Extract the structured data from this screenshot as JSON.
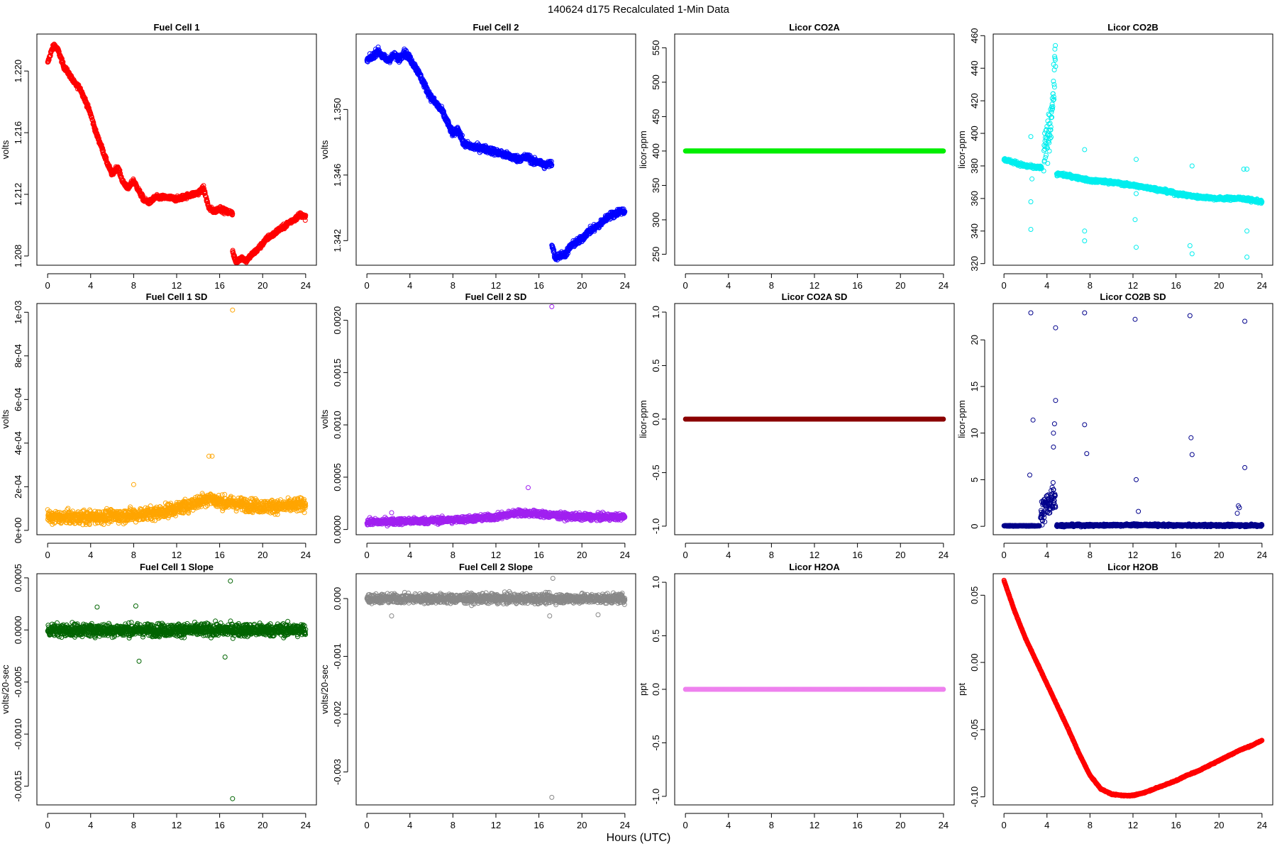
{
  "figure": {
    "title": "140624    d175    Recalculated 1-Min Data",
    "xlabel": "Hours (UTC)"
  },
  "chart_data": [
    {
      "type": "scatter",
      "title": "Fuel Cell 1",
      "ylabel": "volts",
      "color": "#ff0000",
      "x_ticks": [
        0,
        4,
        8,
        12,
        16,
        20,
        24
      ],
      "xlim": [
        -1,
        25
      ],
      "ylim": [
        1.2074,
        1.2224
      ],
      "y_ticks": [
        1.208,
        1.212,
        1.216,
        1.22
      ],
      "y_tick_labels": [
        "1.208",
        "1.212",
        "1.216",
        "1.220"
      ],
      "series": [
        {
          "x": [
            0,
            0.3,
            0.6,
            1,
            1.5,
            2,
            2.5,
            3,
            3.5,
            4,
            4.5,
            5,
            5.5,
            6,
            6.5,
            7,
            7.5,
            8,
            8.5,
            9,
            9.5,
            10,
            11,
            12,
            13,
            14,
            14.5,
            15,
            15.5,
            16,
            16.5,
            17.2
          ],
          "y": [
            1.2205,
            1.2212,
            1.2217,
            1.2213,
            1.2203,
            1.2198,
            1.2192,
            1.2189,
            1.2181,
            1.2172,
            1.216,
            1.2151,
            1.2141,
            1.2133,
            1.2138,
            1.2128,
            1.2124,
            1.2129,
            1.2122,
            1.2116,
            1.2115,
            1.2118,
            1.2118,
            1.2117,
            1.2119,
            1.2121,
            1.2124,
            1.2111,
            1.2109,
            1.2111,
            1.2109,
            1.2108
          ],
          "noise": 0.00015
        },
        {
          "x": [
            17.2,
            17.5,
            18,
            18.5,
            19,
            19.5,
            20,
            20.5,
            21,
            21.5,
            22,
            22.5,
            23,
            23.5,
            24
          ],
          "y": [
            1.2083,
            1.2076,
            1.2079,
            1.2077,
            1.2081,
            1.2084,
            1.2088,
            1.2092,
            1.2094,
            1.2097,
            1.2099,
            1.2102,
            1.2104,
            1.2107,
            1.2105
          ],
          "noise": 0.00015
        }
      ]
    },
    {
      "type": "scatter",
      "title": "Fuel Cell 2",
      "ylabel": "volts",
      "color": "#0000ff",
      "x_ticks": [
        0,
        4,
        8,
        12,
        16,
        20,
        24
      ],
      "xlim": [
        -1,
        25
      ],
      "ylim": [
        1.3405,
        1.3546
      ],
      "y_ticks": [
        1.342,
        1.346,
        1.35
      ],
      "y_tick_labels": [
        "1.342",
        "1.346",
        "1.350"
      ],
      "series": [
        {
          "x": [
            0,
            0.5,
            1,
            1.5,
            2,
            2.5,
            3,
            3.5,
            4,
            4.5,
            5,
            5.5,
            6,
            6.5,
            7,
            7.5,
            8,
            8.5,
            9,
            10,
            11,
            12,
            13,
            14,
            15,
            15.5,
            16,
            16.5,
            17.2
          ],
          "y": [
            1.353,
            1.3532,
            1.3536,
            1.3532,
            1.353,
            1.3533,
            1.3531,
            1.3535,
            1.3531,
            1.3526,
            1.352,
            1.3513,
            1.3507,
            1.3503,
            1.3499,
            1.3492,
            1.3485,
            1.3488,
            1.3479,
            1.3477,
            1.3476,
            1.3474,
            1.3472,
            1.347,
            1.3471,
            1.3468,
            1.3468,
            1.3466,
            1.3467
          ],
          "noise": 0.0002
        },
        {
          "x": [
            17.2,
            17.5,
            18,
            18.5,
            19,
            19.5,
            20,
            20.5,
            21,
            21.5,
            22,
            22.5,
            23,
            23.5,
            24
          ],
          "y": [
            1.3418,
            1.341,
            1.3411,
            1.3412,
            1.3417,
            1.3419,
            1.3421,
            1.3425,
            1.3427,
            1.3429,
            1.3432,
            1.3435,
            1.3436,
            1.3438,
            1.3438
          ],
          "noise": 0.0002
        }
      ]
    },
    {
      "type": "scatter",
      "title": "Licor CO2A",
      "ylabel": "licor-ppm",
      "color": "#00ee00",
      "x_ticks": [
        0,
        4,
        8,
        12,
        16,
        20,
        24
      ],
      "xlim": [
        -1,
        25
      ],
      "ylim": [
        234,
        570
      ],
      "y_ticks": [
        250,
        300,
        350,
        400,
        450,
        500,
        550
      ],
      "y_tick_labels": [
        "250",
        "300",
        "350",
        "400",
        "450",
        "500",
        "550"
      ],
      "series": [
        {
          "x": [
            0,
            24
          ],
          "y": [
            400,
            400
          ],
          "noise": 0
        }
      ]
    },
    {
      "type": "scatter",
      "title": "Licor CO2B",
      "ylabel": "licor-ppm",
      "color": "#00eeee",
      "x_ticks": [
        0,
        4,
        8,
        12,
        16,
        20,
        24
      ],
      "xlim": [
        -1,
        25
      ],
      "ylim": [
        319,
        461
      ],
      "y_ticks": [
        320,
        340,
        360,
        380,
        400,
        420,
        440,
        460
      ],
      "y_tick_labels": [
        "320",
        "340",
        "360",
        "380",
        "400",
        "420",
        "440",
        "460"
      ],
      "series": [
        {
          "x": [
            0,
            1,
            2,
            3,
            3.5
          ],
          "y": [
            384,
            382,
            380,
            379,
            379
          ],
          "noise": 1
        },
        {
          "x": [
            3.7,
            4,
            4.3,
            4.6,
            4.8
          ],
          "y": [
            385,
            395,
            405,
            425,
            450
          ],
          "noise": 12
        },
        {
          "x": [
            4.9,
            6,
            8,
            10,
            12,
            14,
            16,
            18,
            20,
            22,
            24
          ],
          "y": [
            375,
            374,
            371,
            370,
            368,
            366,
            363,
            361,
            360,
            360,
            358
          ],
          "noise": 1
        }
      ],
      "points": {
        "x": [
          2.5,
          2.5,
          2.6,
          2.5,
          7.5,
          7.5,
          7.5,
          12.3,
          12.3,
          12.2,
          12.3,
          17.3,
          17.5,
          17.5,
          22.3,
          22.6,
          22.6,
          22.6
        ],
        "y": [
          398,
          341,
          372,
          358,
          390,
          340,
          334,
          384,
          363,
          347,
          330,
          331,
          380,
          326,
          378,
          378,
          340,
          324
        ]
      }
    },
    {
      "type": "scatter",
      "title": "Fuel Cell 1 SD",
      "ylabel": "volts",
      "color": "#ffa500",
      "x_ticks": [
        0,
        4,
        8,
        12,
        16,
        20,
        24
      ],
      "xlim": [
        -1,
        25
      ],
      "ylim": [
        -2e-05,
        0.00104
      ],
      "y_ticks": [
        0,
        0.0002,
        0.0004,
        0.0006,
        0.0008,
        0.001
      ],
      "y_tick_labels": [
        "0e+00",
        "2e-04",
        "4e-04",
        "6e-04",
        "8e-04",
        "1e-03"
      ],
      "series": [
        {
          "x": [
            0,
            4,
            8,
            10,
            12,
            14,
            15,
            16,
            18,
            20,
            22,
            24
          ],
          "y": [
            6e-05,
            6e-05,
            7e-05,
            8e-05,
            0.0001,
            0.00013,
            0.00015,
            0.00013,
            0.00012,
            0.00011,
            0.00011,
            0.00012
          ],
          "noise": 3e-05
        }
      ],
      "points": {
        "x": [
          17.2,
          15.0,
          15.3,
          8.0
        ],
        "y": [
          0.00101,
          0.00034,
          0.00034,
          0.00021
        ]
      }
    },
    {
      "type": "scatter",
      "title": "Fuel Cell 2 SD",
      "ylabel": "volts",
      "color": "#a020f0",
      "x_ticks": [
        0,
        4,
        8,
        12,
        16,
        20,
        24
      ],
      "xlim": [
        -1,
        25
      ],
      "ylim": [
        -5e-05,
        0.00216
      ],
      "y_ticks": [
        0,
        0.0005,
        0.001,
        0.0015,
        0.002
      ],
      "y_tick_labels": [
        "0.0000",
        "0.0005",
        "0.0010",
        "0.0015",
        "0.0020"
      ],
      "series": [
        {
          "x": [
            0,
            4,
            8,
            12,
            14,
            16,
            18,
            20,
            24
          ],
          "y": [
            7e-05,
            8e-05,
            9e-05,
            0.00012,
            0.00016,
            0.00015,
            0.00013,
            0.00012,
            0.00012
          ],
          "noise": 3e-05
        }
      ],
      "points": {
        "x": [
          17.2,
          15.0,
          2.3
        ],
        "y": [
          0.00213,
          0.0004,
          0.00016
        ]
      }
    },
    {
      "type": "scatter",
      "title": "Licor CO2A SD",
      "ylabel": "licor-ppm",
      "color": "#8b0000",
      "x_ticks": [
        0,
        4,
        8,
        12,
        16,
        20,
        24
      ],
      "xlim": [
        -1,
        25
      ],
      "ylim": [
        -1.08,
        1.08
      ],
      "y_ticks": [
        -1,
        -0.5,
        0,
        0.5,
        1
      ],
      "y_tick_labels": [
        "-1.0",
        "-0.5",
        "0.0",
        "0.5",
        "1.0"
      ],
      "series": [
        {
          "x": [
            0,
            24
          ],
          "y": [
            0,
            0
          ],
          "noise": 0
        }
      ]
    },
    {
      "type": "scatter",
      "title": "Licor CO2B SD",
      "ylabel": "licor-ppm",
      "color": "#00008b",
      "x_ticks": [
        0,
        4,
        8,
        12,
        16,
        20,
        24
      ],
      "xlim": [
        -1,
        25
      ],
      "ylim": [
        -0.9,
        23.9
      ],
      "y_ticks": [
        0,
        5,
        10,
        15,
        20
      ],
      "y_tick_labels": [
        "0",
        "5",
        "10",
        "15",
        "20"
      ],
      "series": [
        {
          "x": [
            0,
            2,
            3.3
          ],
          "y": [
            0.05,
            0.05,
            0.05
          ],
          "noise": 0.04
        },
        {
          "x": [
            3.4,
            3.8,
            4.2,
            4.6,
            4.8
          ],
          "y": [
            1,
            2,
            2.5,
            3.5,
            3
          ],
          "noise": 1.6
        },
        {
          "x": [
            4.9,
            8,
            12,
            16,
            20,
            24
          ],
          "y": [
            0.1,
            0.1,
            0.15,
            0.1,
            0.1,
            0.1
          ],
          "noise": 0.12
        }
      ],
      "points": {
        "x": [
          2.5,
          2.4,
          2.7,
          4.8,
          4.8,
          4.7,
          4.6,
          4.6,
          7.5,
          7.5,
          7.7,
          12.2,
          12.3,
          17.3,
          17.4,
          17.5,
          22.4,
          22.4,
          21.8,
          21.9,
          21.7,
          12.5
        ],
        "y": [
          22.9,
          5.5,
          11.4,
          21.3,
          13.5,
          11,
          10,
          8.5,
          22.9,
          10.9,
          7.8,
          22.2,
          5,
          22.6,
          9.5,
          7.7,
          22,
          6.3,
          2.2,
          2,
          1.4,
          1.6
        ]
      }
    },
    {
      "type": "scatter",
      "title": "Fuel Cell 1 Slope",
      "ylabel": "volts/20-sec",
      "color": "#006400",
      "x_ticks": [
        0,
        4,
        8,
        12,
        16,
        20,
        24
      ],
      "xlim": [
        -1,
        25
      ],
      "ylim": [
        -0.00168,
        0.00054
      ],
      "y_ticks": [
        -0.0015,
        -0.001,
        -0.0005,
        0,
        0.0005
      ],
      "y_tick_labels": [
        "-0.0015",
        "-0.0010",
        "-0.0005",
        "0.0000",
        "0.0005"
      ],
      "series": [
        {
          "x": [
            0,
            24
          ],
          "y": [
            0,
            0
          ],
          "noise": 6e-05
        }
      ],
      "points": {
        "x": [
          17.2,
          17.0,
          8.5,
          4.6,
          8.2,
          16.5
        ],
        "y": [
          -0.00162,
          0.00047,
          -0.0003,
          0.00022,
          0.00023,
          -0.00026
        ]
      }
    },
    {
      "type": "scatter",
      "title": "Fuel Cell 2 Slope",
      "ylabel": "volts/20-sec",
      "color": "#888888",
      "x_ticks": [
        0,
        4,
        8,
        12,
        16,
        20,
        24
      ],
      "xlim": [
        -1,
        25
      ],
      "ylim": [
        -0.00357,
        0.00043
      ],
      "y_ticks": [
        -0.003,
        -0.002,
        -0.001,
        0
      ],
      "y_tick_labels": [
        "-0.003",
        "-0.002",
        "-0.001",
        "0.000"
      ],
      "series": [
        {
          "x": [
            0,
            24
          ],
          "y": [
            0,
            0
          ],
          "noise": 8e-05
        }
      ],
      "points": {
        "x": [
          17.2,
          17.3,
          2.3,
          17.0,
          21.5
        ],
        "y": [
          -0.00344,
          0.00035,
          -0.0003,
          -0.0003,
          -0.00028
        ]
      }
    },
    {
      "type": "scatter",
      "title": "Licor H2OA",
      "ylabel": "ppt",
      "color": "#ee82ee",
      "x_ticks": [
        0,
        4,
        8,
        12,
        16,
        20,
        24
      ],
      "xlim": [
        -1,
        25
      ],
      "ylim": [
        -1.08,
        1.08
      ],
      "y_ticks": [
        -1,
        -0.5,
        0,
        0.5,
        1
      ],
      "y_tick_labels": [
        "-1.0",
        "-0.5",
        "0.0",
        "0.5",
        "1.0"
      ],
      "series": [
        {
          "x": [
            0,
            24
          ],
          "y": [
            0,
            0
          ],
          "noise": 0
        }
      ]
    },
    {
      "type": "scatter",
      "title": "Licor H2OB",
      "ylabel": "ppt",
      "color": "#ff0000",
      "x_ticks": [
        0,
        4,
        8,
        12,
        16,
        20,
        24
      ],
      "xlim": [
        -1,
        25
      ],
      "ylim": [
        -0.106,
        0.066
      ],
      "y_ticks": [
        -0.1,
        -0.05,
        0,
        0.05
      ],
      "y_tick_labels": [
        "-0.10",
        "-0.05",
        "0.00",
        "0.05"
      ],
      "series": [
        {
          "x": [
            0,
            1,
            2,
            3,
            4,
            5,
            6,
            7,
            8,
            9,
            10,
            11,
            12,
            13,
            14,
            15,
            16,
            17,
            18,
            19,
            20,
            21,
            22,
            23,
            24
          ],
          "y": [
            0.061,
            0.038,
            0.018,
            0.001,
            -0.016,
            -0.033,
            -0.05,
            -0.068,
            -0.084,
            -0.094,
            -0.098,
            -0.099,
            -0.099,
            -0.097,
            -0.094,
            -0.091,
            -0.088,
            -0.084,
            -0.081,
            -0.077,
            -0.073,
            -0.069,
            -0.065,
            -0.062,
            -0.058
          ],
          "noise": 0.0004
        }
      ]
    }
  ]
}
